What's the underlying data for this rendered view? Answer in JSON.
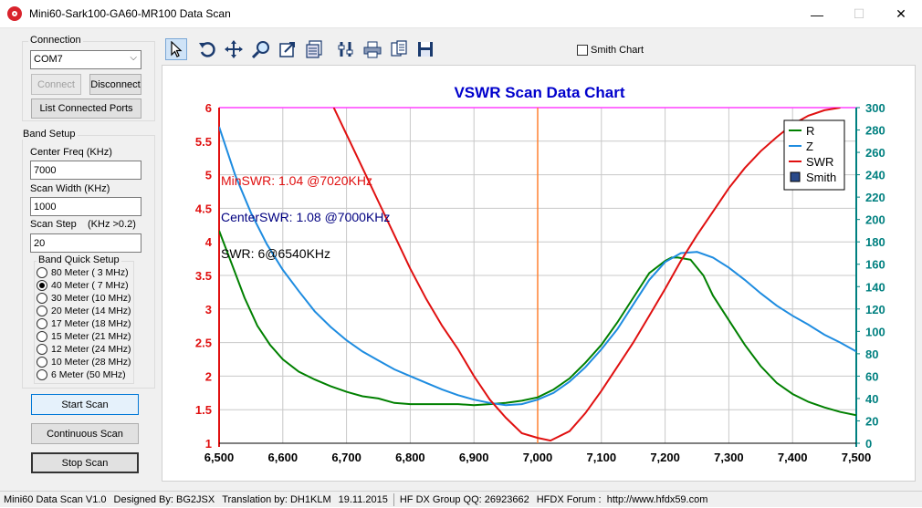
{
  "window": {
    "title": "Mini60-Sark100-GA60-MR100 Data Scan",
    "min_glyph": "—",
    "max_glyph": "☐",
    "close_glyph": "✕"
  },
  "connection": {
    "group_label": "Connection",
    "port_value": "COM7",
    "connect_label": "Connect",
    "disconnect_label": "Disconnect",
    "list_ports_label": "List Connected Ports"
  },
  "band_setup": {
    "group_label": "Band Setup",
    "center_freq_label": "Center Freq  (KHz)",
    "center_freq_value": "7000",
    "scan_width_label": "Scan Width   (KHz)",
    "scan_width_value": "1000",
    "scan_step_label": "Scan Step",
    "scan_step_hint": "(KHz >0.2)",
    "scan_step_value": "20",
    "quick_label": "Band Quick Setup",
    "bands": [
      {
        "label": "80 Meter  (  3 MHz)",
        "selected": false
      },
      {
        "label": "40 Meter  (  7 MHz)",
        "selected": true
      },
      {
        "label": "30 Meter (10 MHz)",
        "selected": false
      },
      {
        "label": "20 Meter (14 MHz)",
        "selected": false
      },
      {
        "label": "17 Meter (18 MHz)",
        "selected": false
      },
      {
        "label": "15 Meter (21 MHz)",
        "selected": false
      },
      {
        "label": "12 Meter (24 MHz)",
        "selected": false
      },
      {
        "label": "10 Meter (28 MHz)",
        "selected": false
      },
      {
        "label": " 6 Meter  (50 MHz)",
        "selected": false
      }
    ]
  },
  "scan_buttons": {
    "start": "Start Scan",
    "continuous": "Continuous Scan",
    "stop": "Stop Scan"
  },
  "toolbar": {
    "smith_chart_label": "Smith Chart",
    "tools": [
      "pointer-icon",
      "undo-icon",
      "pan-icon",
      "zoom-icon",
      "export-icon",
      "data-icon",
      "settings-icon",
      "print-icon",
      "copy-icon",
      "save-icon"
    ]
  },
  "status": {
    "version": "Mini60 Data Scan V1.0",
    "designed": "Designed By: BG2JSX",
    "translation": "Translation by: DH1KLM",
    "date": "19.11.2015",
    "group": "HF DX Group QQ: 26923662",
    "forum": "HFDX Forum :  http://www.hfdx59.com"
  },
  "colors": {
    "title": "#0000cc",
    "r_series": "#008000",
    "z_series": "#1e8ce0",
    "swr_series": "#e01010",
    "right_axis": "#008080",
    "left_axis": "#e01010",
    "top_line": "#ff40ff",
    "center_marker": "#ff8030",
    "min_text": "#e01010",
    "center_text": "#000080",
    "swr_text": "#000000"
  },
  "annotations": {
    "min_swr": "MinSWR: 1.04 @7020KHz",
    "center_swr": "CenterSWR: 1.08 @7000KHz",
    "swr": "SWR: 6@6540KHz"
  },
  "chart_data": {
    "type": "line",
    "title": "VSWR Scan Data Chart",
    "xlim": [
      6500,
      7500
    ],
    "x_ticks": [
      "6,500",
      "6,600",
      "6,700",
      "6,800",
      "6,900",
      "7,000",
      "7,100",
      "7,200",
      "7,300",
      "7,400",
      "7,500"
    ],
    "ylim_left": [
      1,
      6
    ],
    "y_left_ticks": [
      "1",
      "1.5",
      "2",
      "2.5",
      "3",
      "3.5",
      "4",
      "4.5",
      "5",
      "5.5",
      "6"
    ],
    "ylim_right": [
      0,
      300
    ],
    "y_right_ticks": [
      "0",
      "20",
      "40",
      "60",
      "80",
      "100",
      "120",
      "140",
      "160",
      "180",
      "200",
      "220",
      "240",
      "260",
      "280",
      "300"
    ],
    "grid": true,
    "legend_position": "top-right",
    "legend": [
      "R",
      "Z",
      "SWR",
      "Smith"
    ],
    "center_marker_x": 7000,
    "series": [
      {
        "name": "R",
        "axis": "right",
        "x": [
          6500,
          6520,
          6540,
          6560,
          6580,
          6600,
          6625,
          6650,
          6675,
          6700,
          6725,
          6750,
          6775,
          6800,
          6850,
          6875,
          6900,
          6925,
          6950,
          6975,
          7000,
          7025,
          7050,
          7075,
          7100,
          7125,
          7150,
          7175,
          7200,
          7210,
          7220,
          7240,
          7260,
          7275,
          7300,
          7325,
          7350,
          7375,
          7400,
          7425,
          7450,
          7475,
          7500
        ],
        "y": [
          190,
          160,
          130,
          105,
          88,
          75,
          64,
          57,
          51,
          46,
          42,
          40,
          36,
          35,
          35,
          35,
          34,
          35,
          36,
          38,
          41,
          48,
          58,
          72,
          88,
          108,
          130,
          152,
          163,
          166,
          166,
          164,
          150,
          132,
          110,
          88,
          69,
          54,
          44,
          37,
          32,
          28,
          25
        ]
      },
      {
        "name": "Z",
        "axis": "right",
        "x": [
          6500,
          6525,
          6550,
          6575,
          6600,
          6625,
          6650,
          6675,
          6700,
          6725,
          6750,
          6775,
          6800,
          6825,
          6850,
          6875,
          6900,
          6925,
          6950,
          6975,
          7000,
          7025,
          7050,
          7075,
          7100,
          7125,
          7150,
          7175,
          7200,
          7225,
          7250,
          7275,
          7300,
          7325,
          7350,
          7375,
          7400,
          7425,
          7450,
          7475,
          7500
        ],
        "y": [
          283,
          240,
          206,
          178,
          155,
          136,
          118,
          104,
          92,
          82,
          74,
          66,
          60,
          54,
          48,
          43,
          39,
          36,
          34,
          35,
          39,
          45,
          55,
          68,
          84,
          102,
          124,
          146,
          162,
          170,
          171,
          166,
          157,
          146,
          134,
          123,
          114,
          106,
          97,
          90,
          82
        ]
      },
      {
        "name": "SWR",
        "axis": "left",
        "x": [
          6680,
          6700,
          6725,
          6750,
          6775,
          6800,
          6825,
          6850,
          6875,
          6900,
          6925,
          6950,
          6975,
          7000,
          7020,
          7050,
          7075,
          7100,
          7125,
          7150,
          7175,
          7200,
          7225,
          7250,
          7275,
          7300,
          7325,
          7350,
          7375,
          7400,
          7425,
          7450,
          7475
        ],
        "y": [
          6.0,
          5.6,
          5.1,
          4.6,
          4.1,
          3.6,
          3.15,
          2.75,
          2.4,
          2.0,
          1.65,
          1.38,
          1.15,
          1.08,
          1.04,
          1.18,
          1.45,
          1.78,
          2.14,
          2.5,
          2.9,
          3.3,
          3.72,
          4.1,
          4.45,
          4.8,
          5.1,
          5.35,
          5.56,
          5.75,
          5.88,
          5.96,
          6.0
        ]
      }
    ]
  }
}
